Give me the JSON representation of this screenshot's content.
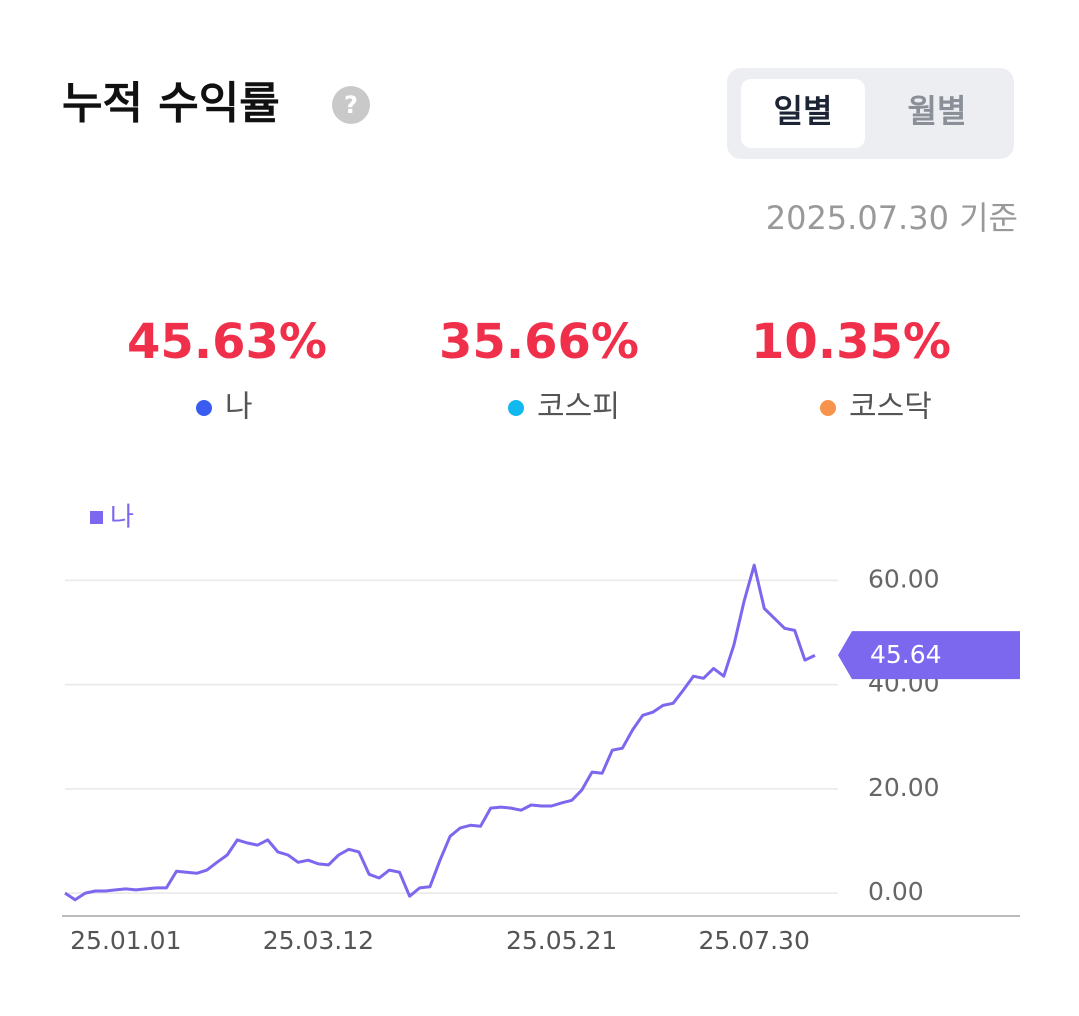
{
  "header": {
    "title": "누적 수익률",
    "help": "?"
  },
  "tabs": [
    "일별",
    "월별"
  ],
  "active_tab": 0,
  "as_of": "2025.07.30 기준",
  "summary": [
    {
      "value": "45.63%",
      "label": "나",
      "color": "#3b5cf0"
    },
    {
      "value": "35.66%",
      "label": "코스피",
      "color": "#12b8f0"
    },
    {
      "value": "10.35%",
      "label": "코스닥",
      "color": "#f7934c"
    }
  ],
  "chart_data": {
    "type": "line",
    "categories": [
      null,
      null,
      null,
      null,
      null,
      null,
      "25.01.01",
      null,
      null,
      null,
      null,
      null,
      null,
      null,
      null,
      null,
      null,
      null,
      null,
      null,
      null,
      null,
      null,
      null,
      null,
      "25.03.12",
      null,
      null,
      null,
      null,
      null,
      null,
      null,
      null,
      null,
      null,
      null,
      null,
      null,
      null,
      null,
      null,
      null,
      null,
      null,
      null,
      null,
      null,
      null,
      "25.05.21",
      null,
      null,
      null,
      null,
      null,
      null,
      null,
      null,
      null,
      null,
      null,
      null,
      null,
      null,
      null,
      null,
      null,
      null,
      "25.07.30",
      null,
      null,
      null,
      null,
      null,
      null
    ],
    "series": [
      {
        "name": "나",
        "color": "#7b68ee",
        "values": [
          0,
          -1.3,
          0,
          0.4,
          0.4,
          0.6,
          0.8,
          0.6,
          0.8,
          1,
          1,
          4.2,
          4,
          3.8,
          4.4,
          5.9,
          7.3,
          10.2,
          9.6,
          9.2,
          10.2,
          7.9,
          7.3,
          5.9,
          6.3,
          5.6,
          5.4,
          7.3,
          8.4,
          7.9,
          3.6,
          2.9,
          4.4,
          4,
          -0.6,
          1,
          1.2,
          6.3,
          10.9,
          12.5,
          13,
          12.8,
          16.3,
          16.5,
          16.3,
          15.9,
          16.9,
          16.7,
          16.7,
          17.3,
          17.8,
          19.8,
          23.2,
          23,
          27.4,
          27.8,
          31.3,
          34.1,
          34.7,
          36,
          36.4,
          38.9,
          41.6,
          41.2,
          43.1,
          41.6,
          47.6,
          56,
          62.9,
          54.6,
          52.7,
          50.8,
          50.4,
          44.7,
          45.6
        ]
      }
    ],
    "current_value": 45.64,
    "ylim": [
      -4.4,
      63.9
    ],
    "yticks": [
      {
        "value": 0,
        "label": "0.00"
      },
      {
        "value": 20,
        "label": "20.00"
      },
      {
        "value": 40,
        "label": "40.00"
      },
      {
        "value": 60,
        "label": "60.00"
      }
    ],
    "grid": true
  }
}
